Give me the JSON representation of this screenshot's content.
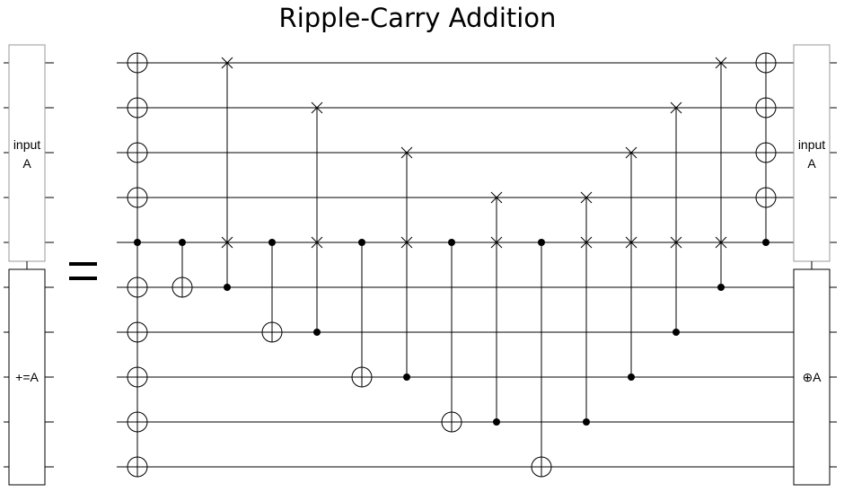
{
  "title": "Ripple-Carry Addition",
  "equals_sign": "=",
  "left_gates": {
    "input": {
      "line1": "input",
      "line2": "A"
    },
    "add": {
      "label": "+=A"
    }
  },
  "right_gates": {
    "input": {
      "line1": "input",
      "line2": "A"
    },
    "add": {
      "label": "⊕A"
    }
  },
  "circuit": {
    "wire_count": 10,
    "columns": [
      {
        "type": "multi",
        "controls": [
          4
        ],
        "targets": [
          0,
          1,
          2,
          3,
          5,
          6,
          7,
          8,
          9
        ]
      },
      {
        "type": "cnot",
        "controls": [
          4
        ],
        "targets": [
          5
        ]
      },
      {
        "type": "cswap",
        "controls": [
          5
        ],
        "swaps": [
          0,
          4
        ]
      },
      {
        "type": "cnot",
        "controls": [
          4
        ],
        "targets": [
          6
        ]
      },
      {
        "type": "cswap",
        "controls": [
          6
        ],
        "swaps": [
          1,
          4
        ]
      },
      {
        "type": "cnot",
        "controls": [
          4
        ],
        "targets": [
          7
        ]
      },
      {
        "type": "cswap",
        "controls": [
          7
        ],
        "swaps": [
          2,
          4
        ]
      },
      {
        "type": "cnot",
        "controls": [
          4
        ],
        "targets": [
          8
        ]
      },
      {
        "type": "cswap",
        "controls": [
          8
        ],
        "swaps": [
          3,
          4
        ]
      },
      {
        "type": "cnot",
        "controls": [
          4
        ],
        "targets": [
          9
        ]
      },
      {
        "type": "cswap",
        "controls": [
          8
        ],
        "swaps": [
          3,
          4
        ]
      },
      {
        "type": "cswap",
        "controls": [
          7
        ],
        "swaps": [
          2,
          4
        ]
      },
      {
        "type": "cswap",
        "controls": [
          6
        ],
        "swaps": [
          1,
          4
        ]
      },
      {
        "type": "cswap",
        "controls": [
          5
        ],
        "swaps": [
          0,
          4
        ]
      },
      {
        "type": "multi",
        "controls": [
          4
        ],
        "targets": [
          0,
          1,
          2,
          3
        ]
      }
    ]
  }
}
